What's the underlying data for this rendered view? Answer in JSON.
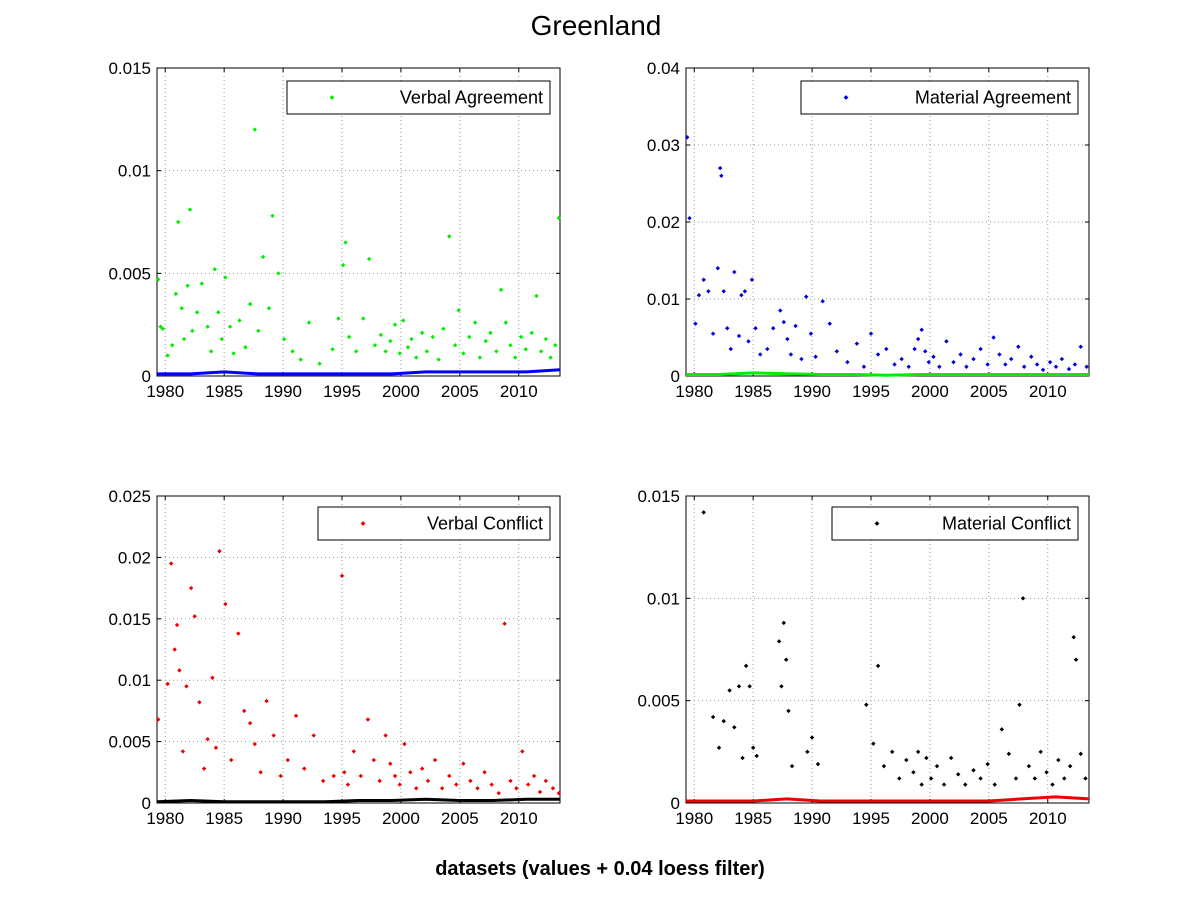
{
  "figure": {
    "title": "Greenland",
    "xlabel": "datasets (values + 0.04 loess filter)"
  },
  "chart_data": [
    {
      "type": "scatter",
      "legend": "Verbal Agreement",
      "legend_position": "top-right",
      "grid": true,
      "xlim": [
        1979.3,
        2013.5
      ],
      "ylim": [
        0,
        0.015
      ],
      "xticks": [
        1980,
        1985,
        1990,
        1995,
        2000,
        2005,
        2010
      ],
      "xtick_labels": [
        "1980",
        "1985",
        "1990",
        "1995",
        "2000",
        "2005",
        "2010"
      ],
      "yticks": [
        0,
        0.005,
        0.01,
        0.015
      ],
      "ytick_labels": [
        "0",
        "0.005",
        "0.01",
        "0.015"
      ],
      "point_color": "#00ee00",
      "filter_color": "#0000ff",
      "x": [
        1979.4,
        1979.6,
        1979.8,
        1980.2,
        1980.6,
        1980.9,
        1981.1,
        1981.4,
        1981.6,
        1981.9,
        1982.1,
        1982.3,
        1982.7,
        1983.1,
        1983.6,
        1983.9,
        1984.2,
        1984.5,
        1984.8,
        1985.1,
        1985.5,
        1985.8,
        1986.3,
        1986.8,
        1987.2,
        1987.6,
        1987.9,
        1988.3,
        1988.8,
        1989.1,
        1989.6,
        1990.1,
        1990.8,
        1991.5,
        1992.2,
        1993.1,
        1994.2,
        1994.7,
        1995.1,
        1995.3,
        1995.6,
        1996.2,
        1996.8,
        1997.3,
        1997.8,
        1998.3,
        1998.7,
        1999.1,
        1999.5,
        1999.9,
        2000.2,
        2000.6,
        2000.9,
        2001.3,
        2001.8,
        2002.2,
        2002.7,
        2003.2,
        2003.6,
        2004.1,
        2004.6,
        2004.9,
        2005.3,
        2005.8,
        2006.3,
        2006.7,
        2007.2,
        2007.6,
        2008.1,
        2008.5,
        2008.9,
        2009.3,
        2009.7,
        2010.2,
        2010.6,
        2011.1,
        2011.5,
        2011.9,
        2012.3,
        2012.7,
        2013.1,
        2013.4
      ],
      "y": [
        0.0047,
        0.0024,
        0.0023,
        0.001,
        0.0015,
        0.004,
        0.0075,
        0.0033,
        0.0018,
        0.0044,
        0.0081,
        0.0022,
        0.0031,
        0.0045,
        0.0024,
        0.0012,
        0.0052,
        0.0031,
        0.0018,
        0.0048,
        0.0024,
        0.0011,
        0.0027,
        0.0014,
        0.0035,
        0.012,
        0.0022,
        0.0058,
        0.0033,
        0.0078,
        0.005,
        0.0018,
        0.0012,
        0.0008,
        0.0026,
        0.0006,
        0.0013,
        0.0028,
        0.0054,
        0.0065,
        0.0019,
        0.0012,
        0.0028,
        0.0057,
        0.0015,
        0.002,
        0.0012,
        0.0017,
        0.0025,
        0.0011,
        0.0027,
        0.0014,
        0.0018,
        0.0009,
        0.0021,
        0.0012,
        0.0019,
        0.0008,
        0.0023,
        0.0068,
        0.0015,
        0.0032,
        0.0011,
        0.0019,
        0.0026,
        0.0009,
        0.0017,
        0.0021,
        0.0012,
        0.0042,
        0.0026,
        0.0015,
        0.0009,
        0.0019,
        0.0013,
        0.0021,
        0.0039,
        0.0012,
        0.0018,
        0.0009,
        0.0015,
        0.0077
      ],
      "filter_y": [
        0.0001,
        0.0001,
        0.0002,
        0.0001,
        0.0001,
        0.0001,
        0.0001,
        0.0001,
        0.0002,
        0.0002,
        0.0002,
        0.0002,
        0.0003
      ]
    },
    {
      "type": "scatter",
      "legend": "Material Agreement",
      "legend_position": "top-right",
      "grid": true,
      "xlim": [
        1979.3,
        2013.5
      ],
      "ylim": [
        0,
        0.04
      ],
      "xticks": [
        1980,
        1985,
        1990,
        1995,
        2000,
        2005,
        2010
      ],
      "xtick_labels": [
        "1980",
        "1985",
        "1990",
        "1995",
        "2000",
        "2005",
        "2010"
      ],
      "yticks": [
        0,
        0.01,
        0.02,
        0.03,
        0.04
      ],
      "ytick_labels": [
        "0",
        "0.01",
        "0.02",
        "0.03",
        "0.04"
      ],
      "point_color": "#0000dd",
      "filter_color": "#00ee00",
      "x": [
        1979.4,
        1979.6,
        1980.1,
        1980.4,
        1980.8,
        1981.2,
        1981.6,
        1982.0,
        1982.2,
        1982.3,
        1982.5,
        1982.8,
        1983.1,
        1983.4,
        1983.8,
        1984.0,
        1984.3,
        1984.6,
        1984.9,
        1985.2,
        1985.6,
        1986.2,
        1986.7,
        1987.3,
        1987.6,
        1987.9,
        1988.2,
        1988.6,
        1989.1,
        1989.5,
        1989.9,
        1990.3,
        1990.9,
        1991.5,
        1992.1,
        1993.0,
        1993.8,
        1994.4,
        1995.0,
        1995.6,
        1996.3,
        1997.0,
        1997.6,
        1998.2,
        1998.7,
        1999.0,
        1999.3,
        1999.6,
        1999.9,
        2000.3,
        2000.8,
        2001.4,
        2002.0,
        2002.6,
        2003.1,
        2003.7,
        2004.3,
        2004.9,
        2005.4,
        2005.9,
        2006.4,
        2006.9,
        2007.5,
        2008.0,
        2008.6,
        2009.1,
        2009.6,
        2010.2,
        2010.7,
        2011.2,
        2011.8,
        2012.3,
        2012.8,
        2013.3
      ],
      "y": [
        0.031,
        0.0205,
        0.0068,
        0.0105,
        0.0125,
        0.011,
        0.0055,
        0.014,
        0.027,
        0.026,
        0.011,
        0.0062,
        0.0035,
        0.0135,
        0.0052,
        0.0105,
        0.011,
        0.0045,
        0.0125,
        0.0062,
        0.0028,
        0.0035,
        0.0062,
        0.0085,
        0.007,
        0.0048,
        0.0028,
        0.0065,
        0.0022,
        0.0103,
        0.0055,
        0.0025,
        0.0097,
        0.0068,
        0.0032,
        0.0018,
        0.0042,
        0.0012,
        0.0055,
        0.0028,
        0.0035,
        0.0015,
        0.0022,
        0.0012,
        0.0035,
        0.0048,
        0.006,
        0.0032,
        0.0018,
        0.0025,
        0.0012,
        0.0045,
        0.0018,
        0.0028,
        0.0012,
        0.0022,
        0.0035,
        0.0015,
        0.005,
        0.0028,
        0.0015,
        0.0022,
        0.0038,
        0.0012,
        0.0025,
        0.0015,
        0.0008,
        0.0018,
        0.0012,
        0.0022,
        0.0009,
        0.0015,
        0.0038,
        0.0012
      ],
      "filter_y": [
        0.0002,
        0.0002,
        0.0004,
        0.0003,
        0.0002,
        0.0002,
        0.0001,
        0.0002,
        0.0002,
        0.0002,
        0.0002,
        0.0002,
        0.0002
      ]
    },
    {
      "type": "scatter",
      "legend": "Verbal Conflict",
      "legend_position": "top-right",
      "grid": true,
      "xlim": [
        1979.3,
        2013.5
      ],
      "ylim": [
        0,
        0.025
      ],
      "xticks": [
        1980,
        1985,
        1990,
        1995,
        2000,
        2005,
        2010
      ],
      "xtick_labels": [
        "1980",
        "1985",
        "1990",
        "1995",
        "2000",
        "2005",
        "2010"
      ],
      "yticks": [
        0,
        0.005,
        0.01,
        0.015,
        0.02,
        0.025
      ],
      "ytick_labels": [
        "0",
        "0.005",
        "0.01",
        "0.015",
        "0.02",
        "0.025"
      ],
      "point_color": "#ee0000",
      "filter_color": "#000000",
      "x": [
        1979.4,
        1980.2,
        1980.5,
        1980.8,
        1981.0,
        1981.2,
        1981.5,
        1981.8,
        1982.2,
        1982.5,
        1982.9,
        1983.3,
        1983.6,
        1984.0,
        1984.3,
        1984.6,
        1985.1,
        1985.6,
        1986.2,
        1986.7,
        1987.2,
        1987.6,
        1988.1,
        1988.6,
        1989.2,
        1989.8,
        1990.4,
        1991.1,
        1991.8,
        1992.6,
        1993.4,
        1994.3,
        1995.0,
        1995.2,
        1995.5,
        1996.0,
        1996.6,
        1997.2,
        1997.7,
        1998.2,
        1998.7,
        1999.1,
        1999.5,
        1999.9,
        2000.3,
        2000.8,
        2001.3,
        2001.8,
        2002.3,
        2002.9,
        2003.5,
        2004.1,
        2004.7,
        2005.3,
        2005.9,
        2006.5,
        2007.1,
        2007.7,
        2008.3,
        2008.8,
        2009.3,
        2009.8,
        2010.3,
        2010.8,
        2011.3,
        2011.8,
        2012.3,
        2012.9,
        2013.4
      ],
      "y": [
        0.0068,
        0.0097,
        0.0195,
        0.0125,
        0.0145,
        0.0108,
        0.0042,
        0.0095,
        0.0175,
        0.0152,
        0.0082,
        0.0028,
        0.0052,
        0.0102,
        0.0045,
        0.0205,
        0.0162,
        0.0035,
        0.0138,
        0.0075,
        0.0065,
        0.0048,
        0.0025,
        0.0083,
        0.0055,
        0.0022,
        0.0035,
        0.0071,
        0.0028,
        0.0055,
        0.0018,
        0.0022,
        0.0185,
        0.0025,
        0.0015,
        0.0042,
        0.0022,
        0.0068,
        0.0035,
        0.0018,
        0.0055,
        0.0032,
        0.0022,
        0.0015,
        0.0048,
        0.0025,
        0.0012,
        0.0028,
        0.0018,
        0.0035,
        0.0012,
        0.0022,
        0.0015,
        0.0032,
        0.0018,
        0.0012,
        0.0025,
        0.0015,
        0.0008,
        0.0146,
        0.0018,
        0.0012,
        0.0042,
        0.0015,
        0.0022,
        0.0009,
        0.0018,
        0.0012,
        0.0008
      ],
      "filter_y": [
        0.0001,
        0.0002,
        0.0001,
        0.0001,
        0.0001,
        0.0001,
        0.0002,
        0.0002,
        0.0003,
        0.0002,
        0.0002,
        0.0003,
        0.0003
      ]
    },
    {
      "type": "scatter",
      "legend": "Material Conflict",
      "legend_position": "top-right",
      "grid": true,
      "xlim": [
        1979.3,
        2013.5
      ],
      "ylim": [
        0,
        0.015
      ],
      "xticks": [
        1980,
        1985,
        1990,
        1995,
        2000,
        2005,
        2010
      ],
      "xtick_labels": [
        "1980",
        "1985",
        "1990",
        "1995",
        "2000",
        "2005",
        "2010"
      ],
      "yticks": [
        0,
        0.005,
        0.01,
        0.015
      ],
      "ytick_labels": [
        "0",
        "0.005",
        "0.01",
        "0.015"
      ],
      "point_color": "#000000",
      "filter_color": "#ee0000",
      "x": [
        1980.8,
        1981.6,
        1982.1,
        1982.5,
        1983.0,
        1983.4,
        1983.8,
        1984.1,
        1984.4,
        1984.7,
        1985.0,
        1985.3,
        1987.2,
        1987.4,
        1987.6,
        1987.8,
        1988.0,
        1988.3,
        1989.6,
        1990.0,
        1990.5,
        1994.6,
        1995.2,
        1995.6,
        1996.1,
        1996.8,
        1997.4,
        1998.0,
        1998.6,
        1999.0,
        1999.3,
        1999.7,
        2000.1,
        2000.6,
        2001.2,
        2001.8,
        2002.4,
        2003.0,
        2003.7,
        2004.3,
        2004.9,
        2005.5,
        2006.1,
        2006.7,
        2007.3,
        2007.6,
        2007.9,
        2008.4,
        2008.9,
        2009.4,
        2009.9,
        2010.4,
        2010.9,
        2011.4,
        2011.9,
        2012.2,
        2012.4,
        2012.8,
        2013.2
      ],
      "y": [
        0.0142,
        0.0042,
        0.0027,
        0.004,
        0.0055,
        0.0037,
        0.0057,
        0.0022,
        0.0067,
        0.0057,
        0.0027,
        0.0023,
        0.0079,
        0.0057,
        0.0088,
        0.007,
        0.0045,
        0.0018,
        0.0025,
        0.0032,
        0.0019,
        0.0048,
        0.0029,
        0.0067,
        0.0018,
        0.0025,
        0.0012,
        0.0021,
        0.0015,
        0.0025,
        0.0009,
        0.0022,
        0.0012,
        0.0018,
        0.0009,
        0.0022,
        0.0014,
        0.0009,
        0.0016,
        0.0012,
        0.0019,
        0.0009,
        0.0036,
        0.0024,
        0.0012,
        0.0048,
        0.01,
        0.0018,
        0.0012,
        0.0025,
        0.0015,
        0.0009,
        0.0021,
        0.0012,
        0.0018,
        0.0081,
        0.007,
        0.0024,
        0.0012
      ],
      "filter_y": [
        0.0001,
        0.0001,
        0.0001,
        0.0002,
        0.0001,
        0.0001,
        0.0001,
        0.0001,
        0.0001,
        0.0001,
        0.0002,
        0.0003,
        0.0002
      ]
    }
  ]
}
